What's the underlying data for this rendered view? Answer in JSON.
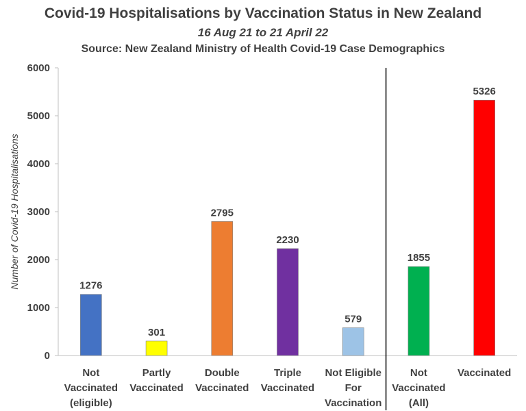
{
  "title": "Covid-19 Hospitalisations by Vaccination Status in New Zealand",
  "subtitle": "16 Aug 21 to 21 April 22",
  "source": "Source: New Zealand Ministry of Health Covid-19 Case Demographics",
  "chart_data": {
    "type": "bar",
    "title": "Covid-19 Hospitalisations by Vaccination Status in New Zealand",
    "subtitle": "16 Aug 21 to 21 April 22",
    "xlabel": "",
    "ylabel": "Number of Covid-19 Hospitalisations",
    "ylim": [
      0,
      6000
    ],
    "yticks": [
      0,
      1000,
      2000,
      3000,
      4000,
      5000,
      6000
    ],
    "grid": false,
    "separator_after_index": 4,
    "categories": [
      [
        "Not",
        "Vaccinated",
        "(eligible)"
      ],
      [
        "Partly",
        "Vaccinated"
      ],
      [
        "Double",
        "Vaccinated"
      ],
      [
        "Triple",
        "Vaccinated"
      ],
      [
        "Not Eligible",
        "For",
        "Vaccination"
      ],
      [
        "Not",
        "Vaccinated",
        "(All)"
      ],
      [
        "Vaccinated"
      ]
    ],
    "values": [
      1276,
      301,
      2795,
      2230,
      579,
      1855,
      5326
    ],
    "colors": [
      "#4472c4",
      "#ffff00",
      "#ed7d31",
      "#7030a0",
      "#9dc3e6",
      "#00b050",
      "#ff0000"
    ]
  }
}
